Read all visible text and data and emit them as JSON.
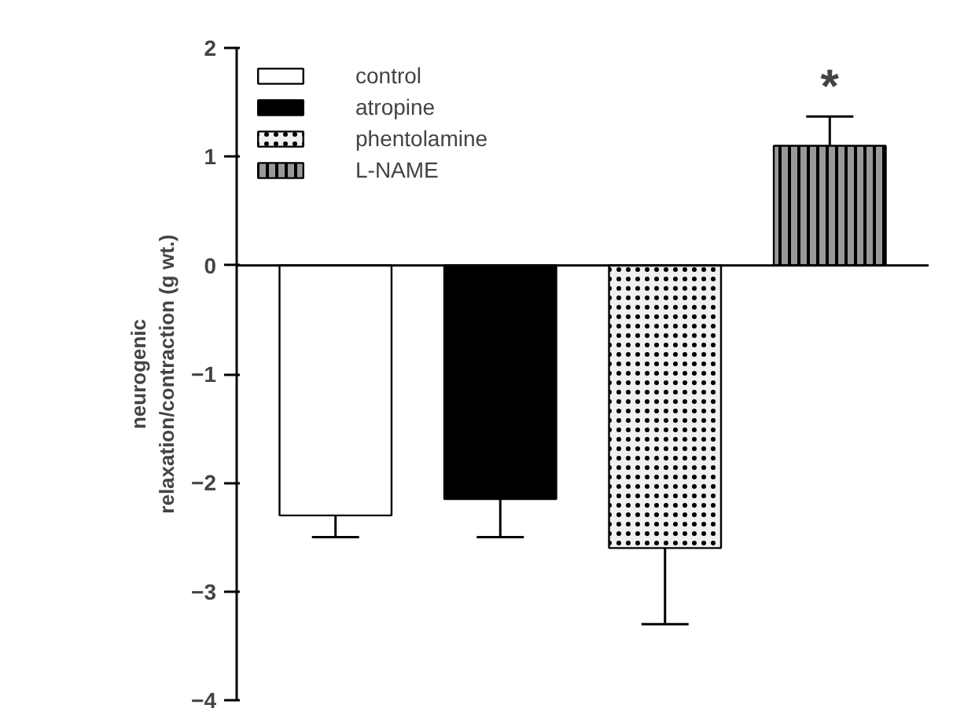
{
  "chart_data": {
    "type": "bar",
    "ylabel": "neurogenic\nrelaxation/contraction (g wt.)",
    "categories": [
      null
    ],
    "series": [
      {
        "name": "control",
        "color": "#ffffff",
        "values": [
          -2.3
        ],
        "errors": [
          0.2
        ]
      },
      {
        "name": "atropine",
        "color": "#000000",
        "values": [
          -2.15
        ],
        "errors": [
          0.35
        ]
      },
      {
        "name": "phentolamine",
        "color": "#f0f0f0",
        "values": [
          -2.6
        ],
        "errors": [
          0.7
        ]
      },
      {
        "name": "L-NAME",
        "color": "#999999",
        "values": [
          1.1
        ],
        "errors": [
          0.27
        ]
      }
    ],
    "ref_lines": [
      {
        "axis": "y",
        "value": 0
      }
    ],
    "ylim": [
      -4,
      2
    ],
    "yticks": [
      -4,
      -3,
      -2,
      -1,
      0,
      1,
      2
    ],
    "legend": "top left",
    "annotations": [
      "*"
    ]
  }
}
